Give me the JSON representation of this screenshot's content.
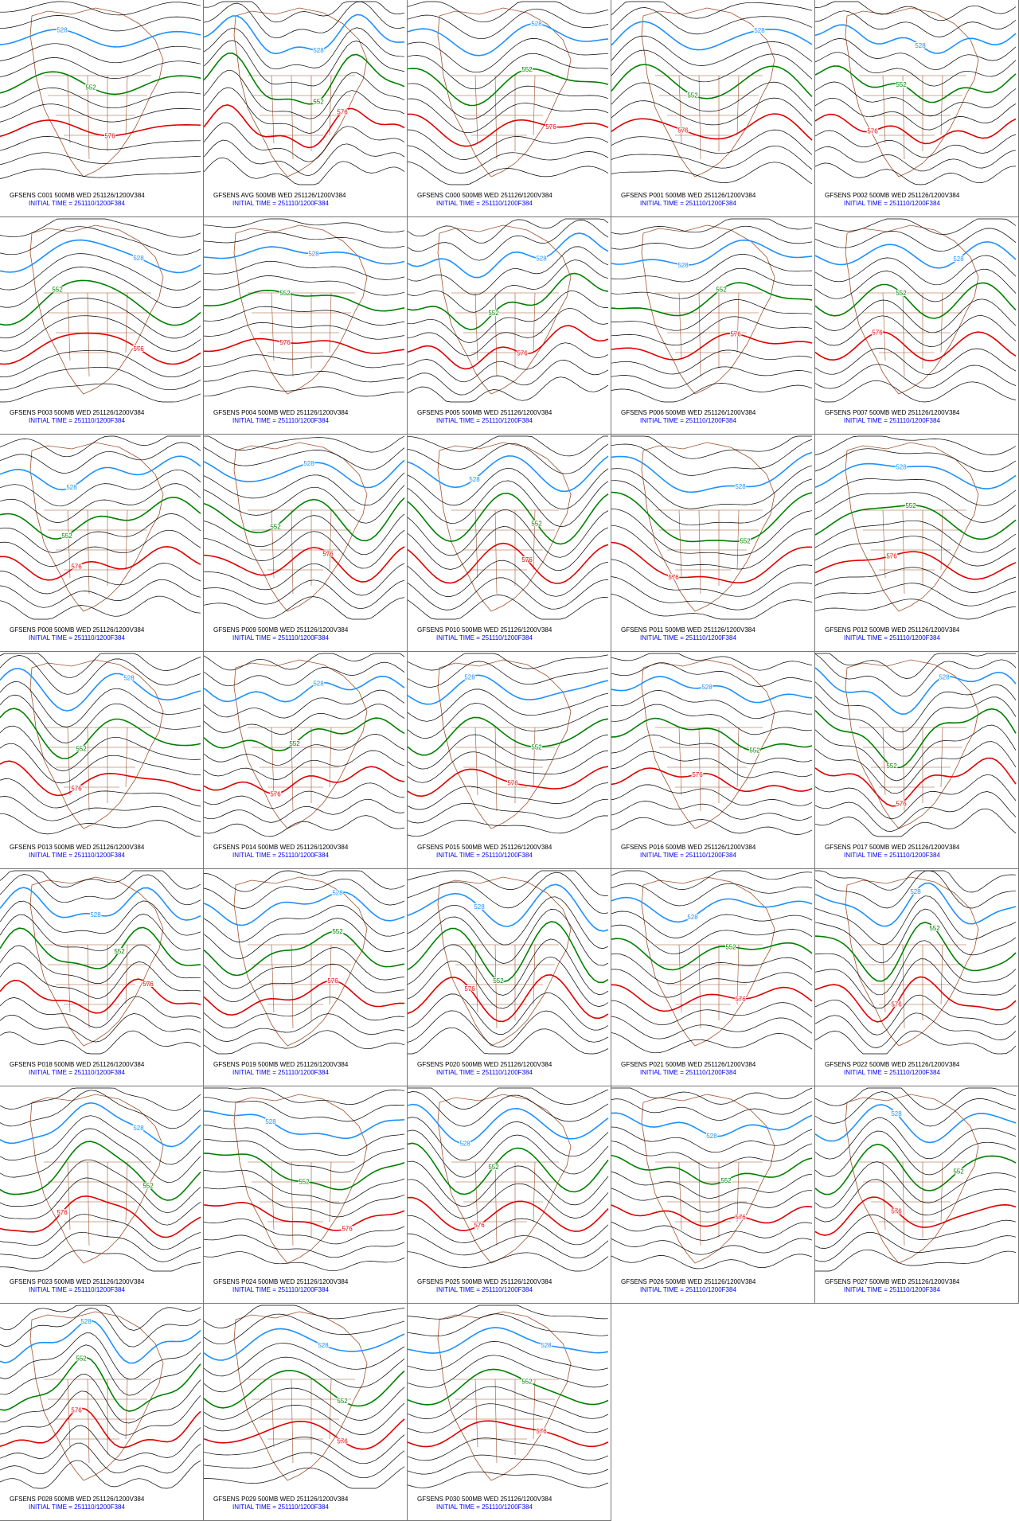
{
  "contour_styles": [
    {
      "color": "#1e90ff"
    },
    {
      "color": "#008000"
    },
    {
      "color": "#e00000"
    }
  ],
  "panels": [
    {
      "title": "GFSENS C001 500MB WED 251126/1200V384",
      "init": "INITIAL TIME = 251110/1200F384",
      "labels": [
        "528",
        "552",
        "576"
      ]
    },
    {
      "title": "GFSENS AVG 500MB WED 251126/1200V384",
      "init": "INITIAL TIME = 251110/1200F384",
      "labels": [
        "528",
        "552",
        "576"
      ]
    },
    {
      "title": "GFSENS C000 500MB WED 251126/1200V384",
      "init": "INITIAL TIME = 251110/1200F384",
      "labels": [
        "528",
        "552",
        "576"
      ]
    },
    {
      "title": "GFSENS P001 500MB WED 251126/1200V384",
      "init": "INITIAL TIME = 251110/1200F384",
      "labels": [
        "528",
        "552",
        "576"
      ]
    },
    {
      "title": "GFSENS P002 500MB WED 251126/1200V384",
      "init": "INITIAL TIME = 251110/1200F384",
      "labels": [
        "528",
        "552",
        "576"
      ]
    },
    {
      "title": "GFSENS P003 500MB WED 251126/1200V384",
      "init": "INITIAL TIME = 251110/1200F384",
      "labels": [
        "528",
        "552",
        "576"
      ]
    },
    {
      "title": "GFSENS P004 500MB WED 251126/1200V384",
      "init": "INITIAL TIME = 251110/1200F384",
      "labels": [
        "528",
        "552",
        "576"
      ]
    },
    {
      "title": "GFSENS P005 500MB WED 251126/1200V384",
      "init": "INITIAL TIME = 251110/1200F384",
      "labels": [
        "528",
        "552",
        "576"
      ]
    },
    {
      "title": "GFSENS P006 500MB WED 251126/1200V384",
      "init": "INITIAL TIME = 251110/1200F384",
      "labels": [
        "528",
        "552",
        "576"
      ]
    },
    {
      "title": "GFSENS P007 500MB WED 251126/1200V384",
      "init": "INITIAL TIME = 251110/1200F384",
      "labels": [
        "528",
        "552",
        "576"
      ]
    },
    {
      "title": "GFSENS P008 500MB WED 251126/1200V384",
      "init": "INITIAL TIME = 251110/1200F384",
      "labels": [
        "528",
        "552",
        "576"
      ]
    },
    {
      "title": "GFSENS P009 500MB WED 251126/1200V384",
      "init": "INITIAL TIME = 251110/1200F384",
      "labels": [
        "528",
        "552",
        "576"
      ]
    },
    {
      "title": "GFSENS P010 500MB WED 251126/1200V384",
      "init": "INITIAL TIME = 251110/1200F384",
      "labels": [
        "528",
        "552",
        "576"
      ]
    },
    {
      "title": "GFSENS P011 500MB WED 251126/1200V384",
      "init": "INITIAL TIME = 251110/1200F384",
      "labels": [
        "528",
        "552",
        "576"
      ]
    },
    {
      "title": "GFSENS P012 500MB WED 251126/1200V384",
      "init": "INITIAL TIME = 251110/1200F384",
      "labels": [
        "528",
        "552",
        "576"
      ]
    },
    {
      "title": "GFSENS P013 500MB WED 251126/1200V384",
      "init": "INITIAL TIME = 251110/1200F384",
      "labels": [
        "528",
        "552",
        "576"
      ]
    },
    {
      "title": "GFSENS P014 500MB WED 251126/1200V384",
      "init": "INITIAL TIME = 251110/1200F384",
      "labels": [
        "528",
        "552",
        "576"
      ]
    },
    {
      "title": "GFSENS P015 500MB WED 251126/1200V384",
      "init": "INITIAL TIME = 251110/1200F384",
      "labels": [
        "528",
        "552",
        "576"
      ]
    },
    {
      "title": "GFSENS P016 500MB WED 251126/1200V384",
      "init": "INITIAL TIME = 251110/1200F384",
      "labels": [
        "528",
        "552",
        "576"
      ]
    },
    {
      "title": "GFSENS P017 500MB WED 251126/1200V384",
      "init": "INITIAL TIME = 251110/1200F384",
      "labels": [
        "528",
        "552",
        "576"
      ]
    },
    {
      "title": "GFSENS P018 500MB WED 251126/1200V384",
      "init": "INITIAL TIME = 251110/1200F384",
      "labels": [
        "528",
        "552",
        "576"
      ]
    },
    {
      "title": "GFSENS P019 500MB WED 251126/1200V384",
      "init": "INITIAL TIME = 251110/1200F384",
      "labels": [
        "528",
        "552",
        "576"
      ]
    },
    {
      "title": "GFSENS P020 500MB WED 251126/1200V384",
      "init": "INITIAL TIME = 251110/1200F384",
      "labels": [
        "528",
        "552",
        "576"
      ]
    },
    {
      "title": "GFSENS P021 500MB WED 251126/1200V384",
      "init": "INITIAL TIME = 251110/1200F384",
      "labels": [
        "528",
        "552",
        "576"
      ]
    },
    {
      "title": "GFSENS P022 500MB WED 251126/1200V384",
      "init": "INITIAL TIME = 251110/1200F384",
      "labels": [
        "528",
        "552",
        "576"
      ]
    },
    {
      "title": "GFSENS P023 500MB WED 251126/1200V384",
      "init": "INITIAL TIME = 251110/1200F384",
      "labels": [
        "528",
        "552",
        "576"
      ]
    },
    {
      "title": "GFSENS P024 500MB WED 251126/1200V384",
      "init": "INITIAL TIME = 251110/1200F384",
      "labels": [
        "528",
        "552",
        "576"
      ]
    },
    {
      "title": "GFSENS P025 500MB WED 251126/1200V384",
      "init": "INITIAL TIME = 251110/1200F384",
      "labels": [
        "528",
        "552",
        "576"
      ]
    },
    {
      "title": "GFSENS P026 500MB WED 251126/1200V384",
      "init": "INITIAL TIME = 251110/1200F384",
      "labels": [
        "528",
        "552",
        "576"
      ]
    },
    {
      "title": "GFSENS P027 500MB WED 251126/1200V384",
      "init": "INITIAL TIME = 251110/1200F384",
      "labels": [
        "528",
        "552",
        "576"
      ]
    },
    {
      "title": "GFSENS P028 500MB WED 251126/1200V384",
      "init": "INITIAL TIME = 251110/1200F384",
      "labels": [
        "528",
        "552",
        "576"
      ]
    },
    {
      "title": "GFSENS P029 500MB WED 251126/1200V384",
      "init": "INITIAL TIME = 251110/1200F384",
      "labels": [
        "528",
        "552",
        "576"
      ]
    },
    {
      "title": "GFSENS P030 500MB WED 251126/1200V384",
      "init": "INITIAL TIME = 251110/1200F384",
      "labels": [
        "528",
        "552",
        "576"
      ]
    }
  ]
}
